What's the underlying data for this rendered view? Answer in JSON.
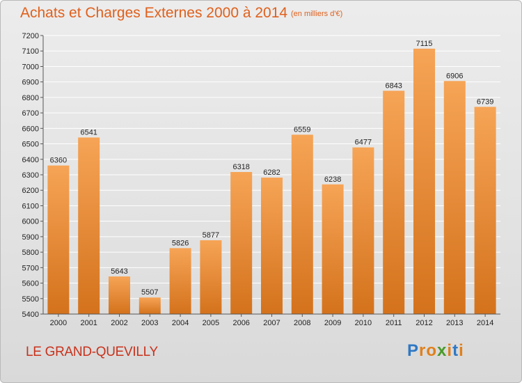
{
  "header": {
    "title": "Achats et Charges Externes 2000 à 2014",
    "subtitle": "(en milliers d'€)"
  },
  "footer": {
    "commune": "LE GRAND-QUEVILLY"
  },
  "logo": {
    "letters": [
      "P",
      "r",
      "o",
      "x",
      "i",
      "t",
      "i"
    ],
    "colors": [
      "#2f78c4",
      "#e0801c",
      "#e0801c",
      "#4a9a2a",
      "#e0801c",
      "#2f78c4",
      "#e0801c"
    ]
  },
  "colors": {
    "bar_top": "#f6a456",
    "bar_bottom": "#d4721c",
    "text_accent": "#e0601c"
  },
  "chart_data": {
    "type": "bar",
    "title": "Achats et Charges Externes 2000 à 2014",
    "subtitle": "(en milliers d'€)",
    "xlabel": "",
    "ylabel": "",
    "categories": [
      "2000",
      "2001",
      "2002",
      "2003",
      "2004",
      "2005",
      "2006",
      "2007",
      "2008",
      "2009",
      "2010",
      "2011",
      "2012",
      "2013",
      "2014"
    ],
    "values": [
      6360,
      6541,
      5643,
      5507,
      5826,
      5877,
      6318,
      6282,
      6559,
      6238,
      6477,
      6843,
      7115,
      6906,
      6739
    ],
    "ylim": [
      5400,
      7200
    ],
    "yticks": [
      5400,
      5500,
      5600,
      5700,
      5800,
      5900,
      6000,
      6100,
      6200,
      6300,
      6400,
      6500,
      6600,
      6700,
      6800,
      6900,
      7000,
      7100,
      7200
    ],
    "grid": true,
    "data_labels": true
  }
}
